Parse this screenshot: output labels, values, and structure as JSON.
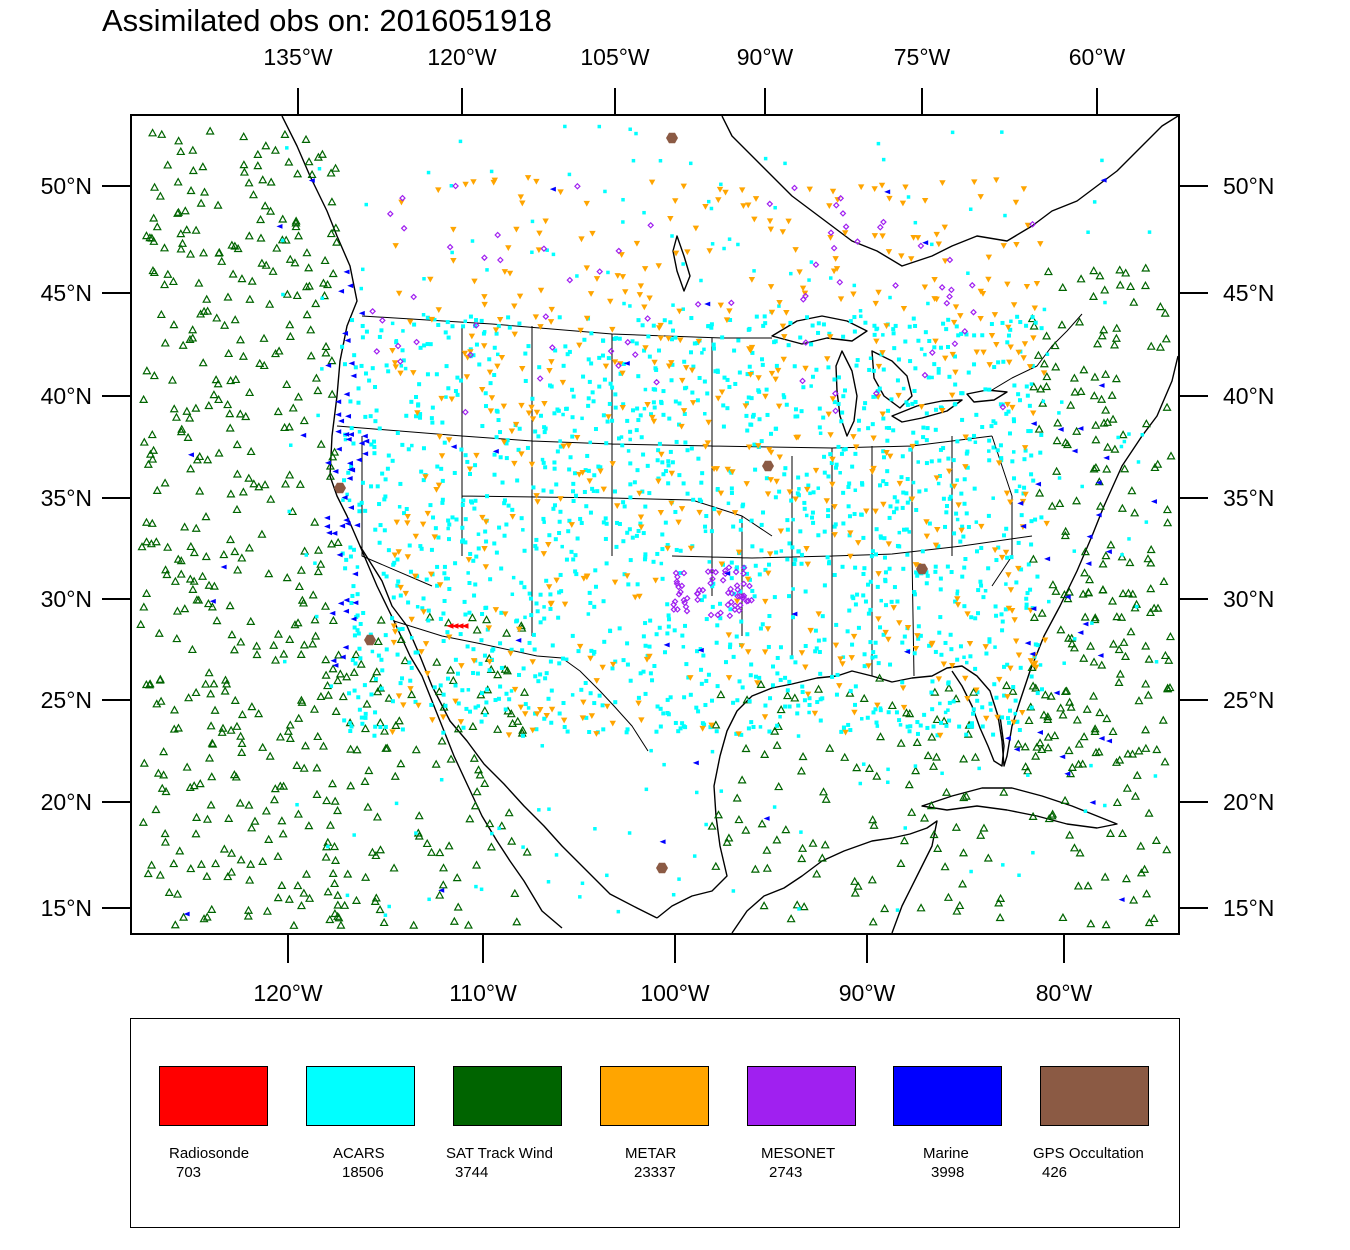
{
  "title": "Assimilated obs on: 2016051918",
  "top_axis_labels": [
    "135°W",
    "120°W",
    "105°W",
    "90°W",
    "75°W",
    "60°W"
  ],
  "bottom_axis_labels": [
    "120°W",
    "110°W",
    "100°W",
    "90°W",
    "80°W"
  ],
  "left_axis_labels": [
    "50°N",
    "45°N",
    "40°N",
    "35°N",
    "30°N",
    "25°N",
    "20°N",
    "15°N"
  ],
  "right_axis_labels": [
    "50°N",
    "45°N",
    "40°N",
    "35°N",
    "30°N",
    "25°N",
    "20°N",
    "15°N"
  ],
  "legend": [
    {
      "label": "Radiosonde",
      "count": "703",
      "color": "#ff0000",
      "icon": "triangle-right"
    },
    {
      "label": "ACARS",
      "count": "18506",
      "color": "#00ffff",
      "icon": "square"
    },
    {
      "label": "SAT Track Wind",
      "count": "3744",
      "color": "#006400",
      "icon": "triangle-up-outline"
    },
    {
      "label": "METAR",
      "count": "23337",
      "color": "#ffa500",
      "icon": "triangle-down"
    },
    {
      "label": "MESONET",
      "count": "2743",
      "color": "#a020f0",
      "icon": "diamond"
    },
    {
      "label": "Marine",
      "count": "3998",
      "color": "#0000ff",
      "icon": "triangle-left"
    },
    {
      "label": "GPS Occultation",
      "count": "426",
      "color": "#8b5a44",
      "icon": "hexagon"
    }
  ]
}
